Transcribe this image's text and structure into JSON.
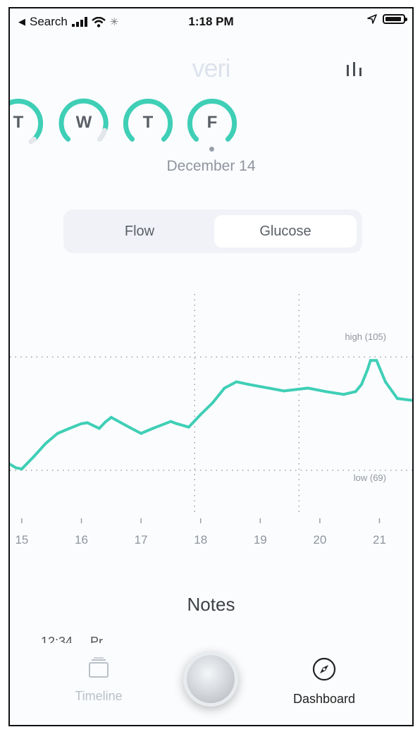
{
  "status_bar": {
    "back_label": "Search",
    "time": "1:18 PM"
  },
  "header": {
    "logo": "veri",
    "chart_icon": "bar-chart-icon"
  },
  "days": [
    {
      "letter": "T"
    },
    {
      "letter": "W"
    },
    {
      "letter": "T"
    },
    {
      "letter": "F"
    }
  ],
  "selected_date": "December 14",
  "segment": {
    "options": [
      "Flow",
      "Glucose"
    ],
    "selected": "Glucose"
  },
  "chart_data": {
    "type": "line",
    "title": "",
    "xlabel": "",
    "ylabel": "",
    "x_ticks": [
      15,
      16,
      17,
      18,
      19,
      20,
      21
    ],
    "xlim": [
      14.8,
      21.55
    ],
    "ylim": [
      60,
      125
    ],
    "high": {
      "label": "high (105)",
      "value": 105
    },
    "low": {
      "label": "low (69)",
      "value": 69
    },
    "vlines_x": [
      17.9,
      19.65
    ],
    "x": [
      14.8,
      14.9,
      15.0,
      15.2,
      15.4,
      15.6,
      15.8,
      16.0,
      16.1,
      16.3,
      16.4,
      16.5,
      16.8,
      17.0,
      17.2,
      17.5,
      17.6,
      17.8,
      18.0,
      18.2,
      18.4,
      18.6,
      18.8,
      19.0,
      19.4,
      19.8,
      20.1,
      20.4,
      20.6,
      20.7,
      20.8,
      20.85,
      20.95,
      21.1,
      21.3,
      21.55
    ],
    "y": [
      70.9,
      69.8,
      69.4,
      73.3,
      77.5,
      80.7,
      82.3,
      83.8,
      84.1,
      82.3,
      84.3,
      85.8,
      82.7,
      80.7,
      82.3,
      84.5,
      83.8,
      82.7,
      86.7,
      90.4,
      95.1,
      97.1,
      96.3,
      95.6,
      94.2,
      95.1,
      94.0,
      93.1,
      94.0,
      96.3,
      101.0,
      103.9,
      103.9,
      97.1,
      91.8,
      91.2
    ],
    "series_color": "#3fcfb6",
    "out_of_range_color": "#606368"
  },
  "notes": {
    "title": "Notes"
  },
  "tabbar": {
    "timeline": {
      "label": "Timeline",
      "icon": "cards-icon"
    },
    "dashboard": {
      "label": "Dashboard",
      "icon": "compass-icon"
    }
  }
}
